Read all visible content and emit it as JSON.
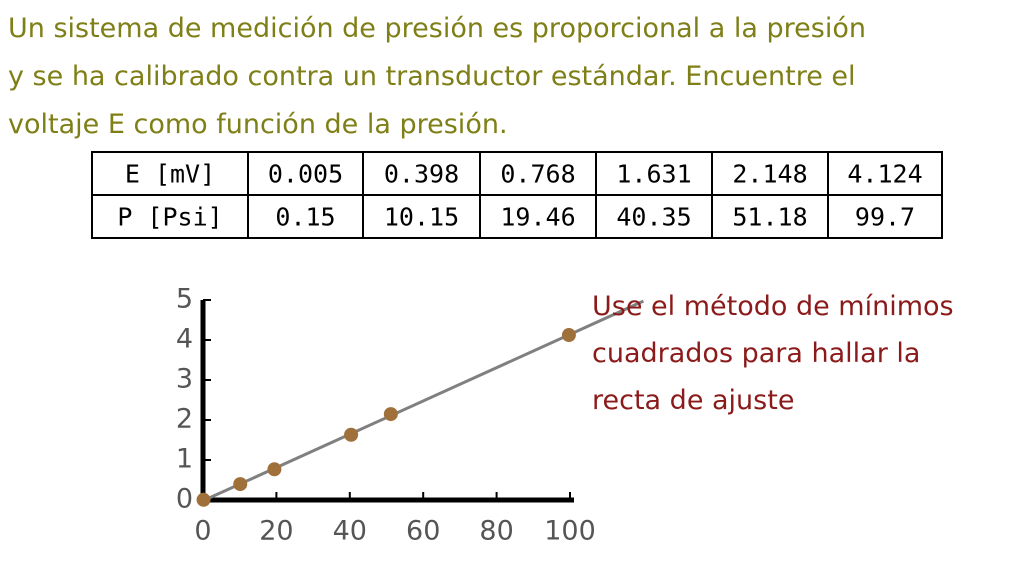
{
  "problem": {
    "lines": [
      "Un sistema de medición de presión es proporcional a la presión",
      "y se ha calibrado contra un transductor estándar.  Encuentre el",
      "voltaje E como función de la presión."
    ]
  },
  "table": {
    "rows": [
      [
        "E [mV]",
        "0.005",
        "0.398",
        "0.768",
        "1.631",
        "2.148",
        "4.124"
      ],
      [
        "P [Psi]",
        "0.15",
        "10.15",
        "19.46",
        "40.35",
        "51.18",
        "99.7"
      ]
    ]
  },
  "chart_data": {
    "type": "scatter",
    "x": [
      0.15,
      10.15,
      19.46,
      40.35,
      51.18,
      99.7
    ],
    "values": [
      0.005,
      0.398,
      0.768,
      1.631,
      2.148,
      4.124
    ],
    "color": "#a0703a",
    "xlim": [
      0,
      100
    ],
    "ylim": [
      0,
      5
    ],
    "xticks": [
      0,
      20,
      40,
      60,
      80,
      100
    ],
    "yticks": [
      0,
      1,
      2,
      3,
      4,
      5
    ],
    "trendline": {
      "color": "#808080",
      "xlim": [
        0,
        120
      ]
    }
  },
  "note": {
    "lines": [
      "Use el método de mínimos",
      "cuadrados para hallar la",
      "recta de ajuste"
    ]
  }
}
